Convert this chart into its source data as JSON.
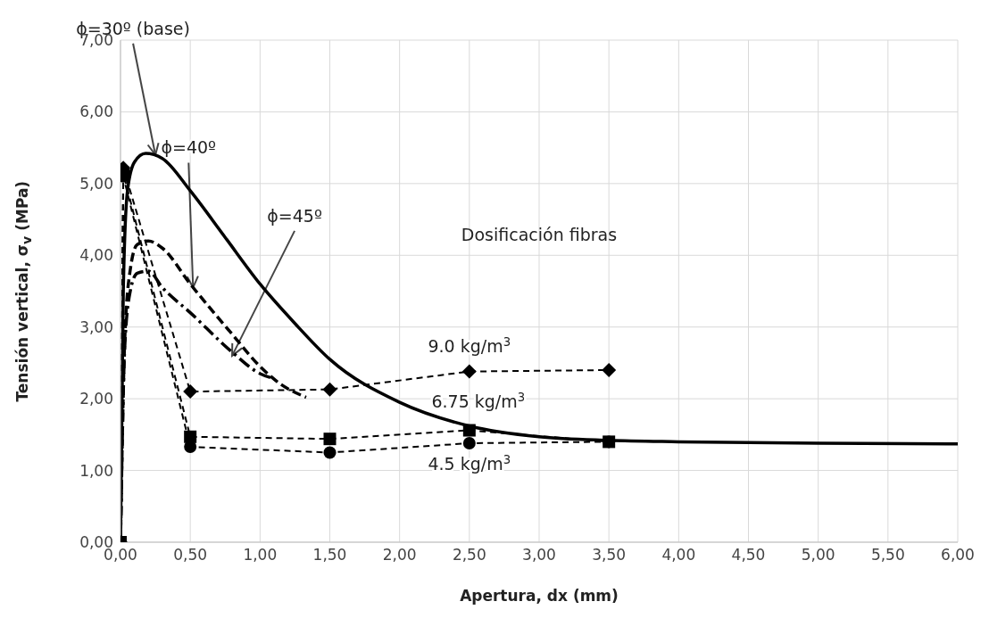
{
  "chart_data": {
    "type": "line",
    "xlabel": "Apertura, dx (mm)",
    "ylabel": "Tensión vertical, σ$_{v}$ (MPa)",
    "xlim": [
      0,
      6
    ],
    "ylim": [
      0,
      7
    ],
    "xticks": [
      {
        "value": 0,
        "label": "0,00"
      },
      {
        "value": 0.5,
        "label": "0,50"
      },
      {
        "value": 1,
        "label": "1,00"
      },
      {
        "value": 1.5,
        "label": "1,50"
      },
      {
        "value": 2,
        "label": "2,00"
      },
      {
        "value": 2.5,
        "label": "2,50"
      },
      {
        "value": 3,
        "label": "3,00"
      },
      {
        "value": 3.5,
        "label": "3,50"
      },
      {
        "value": 4,
        "label": "4,00"
      },
      {
        "value": 4.5,
        "label": "4,50"
      },
      {
        "value": 5,
        "label": "5,00"
      },
      {
        "value": 5.5,
        "label": "5,50"
      },
      {
        "value": 6,
        "label": "6,00"
      }
    ],
    "yticks": [
      {
        "value": 0,
        "label": "0,00"
      },
      {
        "value": 1,
        "label": "1,00"
      },
      {
        "value": 2,
        "label": "2,00"
      },
      {
        "value": 3,
        "label": "3,00"
      },
      {
        "value": 4,
        "label": "4,00"
      },
      {
        "value": 5,
        "label": "5,00"
      },
      {
        "value": 6,
        "label": "6,00"
      },
      {
        "value": 7,
        "label": "7,00"
      }
    ],
    "grid": true,
    "legend": false,
    "series": [
      {
        "color": "#000000",
        "line_style": "solid",
        "marker": "none",
        "x": [
          0,
          0.02,
          0.05,
          0.1,
          0.18,
          0.3,
          0.5,
          0.75,
          1.0,
          1.25,
          1.5,
          2.0,
          2.5,
          3.0,
          3.5,
          4.0,
          5.0,
          6.0
        ],
        "values": [
          0,
          3.5,
          4.9,
          5.3,
          5.42,
          5.35,
          4.9,
          4.25,
          3.6,
          3.05,
          2.55,
          1.95,
          1.62,
          1.47,
          1.42,
          1.4,
          1.38,
          1.37
        ]
      },
      {
        "color": "#000000",
        "line_style": "dashed",
        "marker": "none",
        "x": [
          0,
          0.03,
          0.07,
          0.12,
          0.2,
          0.3,
          0.5,
          0.8,
          1.0,
          1.15,
          1.33
        ],
        "values": [
          0,
          2.8,
          3.8,
          4.15,
          4.2,
          4.1,
          3.6,
          2.9,
          2.45,
          2.2,
          2.02
        ]
      },
      {
        "color": "#000000",
        "line_style": "dotted",
        "marker": "none",
        "x": [
          0,
          0.03,
          0.07,
          0.12,
          0.2,
          0.3,
          0.5,
          0.8,
          1.0,
          1.1
        ],
        "values": [
          0,
          2.7,
          3.5,
          3.75,
          3.78,
          3.55,
          3.2,
          2.65,
          2.35,
          2.28
        ]
      },
      {
        "color": "#000000",
        "line_style": "dashed",
        "marker": "diamond",
        "x": [
          0,
          0.02,
          0.5,
          1.5,
          2.5,
          3.5
        ],
        "values": [
          0,
          5.22,
          2.1,
          2.13,
          2.38,
          2.4
        ]
      },
      {
        "color": "#000000",
        "line_style": "dashed",
        "marker": "square",
        "x": [
          0,
          0.02,
          0.5,
          1.5,
          2.5,
          3.5
        ],
        "values": [
          0,
          5.15,
          1.47,
          1.44,
          1.56,
          1.4
        ]
      },
      {
        "color": "#000000",
        "line_style": "dashed",
        "marker": "circle",
        "x": [
          0,
          0.02,
          0.5,
          1.5,
          2.5,
          3.5
        ],
        "values": [
          0,
          5.1,
          1.33,
          1.25,
          1.38,
          1.4
        ]
      }
    ],
    "annotations": [
      {
        "text": "ϕ=30º (base)",
        "x": 0.25,
        "y": 5.4
      },
      {
        "text": "ϕ=40º",
        "x": 0.52,
        "y": 3.55
      },
      {
        "text": "ϕ=45º",
        "x": 0.8,
        "y": 2.6
      },
      "Dosificación fibras",
      {
        "text": "9.0 kg/m$^{3}$",
        "x": 2.5,
        "y": 2.38
      },
      {
        "text": "6.75 kg/m$^{3}$",
        "x": 2.5,
        "y": 1.56
      },
      {
        "text": "4.5 kg/m$^{3}$",
        "x": 2.5,
        "y": 1.38
      }
    ]
  }
}
